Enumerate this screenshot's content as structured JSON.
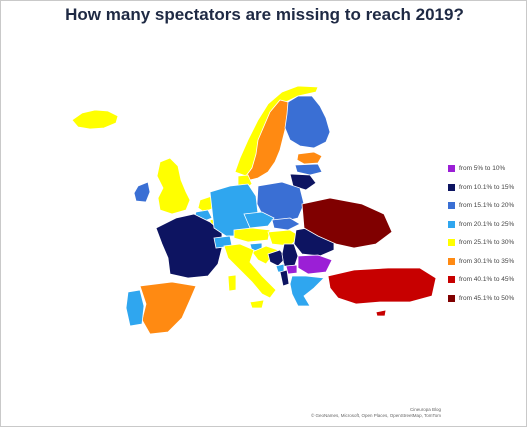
{
  "title": "How many spectators are missing to reach 2019?",
  "legend": [
    {
      "label": "from 5% to 10%",
      "color": "#9b1fd6"
    },
    {
      "label": "from 10.1% to 15%",
      "color": "#0d1461"
    },
    {
      "label": "from 15.1% to 20%",
      "color": "#3a6fd4"
    },
    {
      "label": "from 20.1% to 25%",
      "color": "#2fa6ef"
    },
    {
      "label": "from 25.1% to 30%",
      "color": "#ffff00"
    },
    {
      "label": "from 30.1% to 35%",
      "color": "#ff8a12"
    },
    {
      "label": "from 40.1% to 45%",
      "color": "#c70000"
    },
    {
      "label": "from 45.1% to 50%",
      "color": "#800000"
    }
  ],
  "credits": {
    "line1": "Cineuropa Blog",
    "line2": "© GeoNames, Microsoft, Open Places, OpenStreetMap, TomTom"
  },
  "countries": [
    {
      "name": "Iceland",
      "color": "#ffff00"
    },
    {
      "name": "Norway",
      "color": "#ffff00"
    },
    {
      "name": "Sweden",
      "color": "#ff8a12"
    },
    {
      "name": "Finland",
      "color": "#3a6fd4"
    },
    {
      "name": "Estonia",
      "color": "#ff8a12"
    },
    {
      "name": "Latvia",
      "color": "#3a6fd4"
    },
    {
      "name": "Lithuania",
      "color": "#0d1461"
    },
    {
      "name": "Ireland",
      "color": "#3a6fd4"
    },
    {
      "name": "United Kingdom",
      "color": "#ffff00"
    },
    {
      "name": "Denmark",
      "color": "#ffff00"
    },
    {
      "name": "Netherlands",
      "color": "#ffff00"
    },
    {
      "name": "Belgium",
      "color": "#2fa6ef"
    },
    {
      "name": "Luxembourg",
      "color": "#ffff00"
    },
    {
      "name": "France",
      "color": "#0d1461"
    },
    {
      "name": "Germany",
      "color": "#2fa6ef"
    },
    {
      "name": "Poland",
      "color": "#3a6fd4"
    },
    {
      "name": "Czechia",
      "color": "#2fa6ef"
    },
    {
      "name": "Slovakia",
      "color": "#3a6fd4"
    },
    {
      "name": "Austria",
      "color": "#ffff00"
    },
    {
      "name": "Switzerland",
      "color": "#2fa6ef"
    },
    {
      "name": "Hungary",
      "color": "#ffff00"
    },
    {
      "name": "Slovenia",
      "color": "#2fa6ef"
    },
    {
      "name": "Croatia",
      "color": "#ffff00"
    },
    {
      "name": "Bosnia and Herzegovina",
      "color": "#0d1461"
    },
    {
      "name": "Serbia",
      "color": "#0d1461"
    },
    {
      "name": "Montenegro",
      "color": "#2fa6ef"
    },
    {
      "name": "North Macedonia",
      "color": "#9b1fd6"
    },
    {
      "name": "Albania",
      "color": "#0d1461"
    },
    {
      "name": "Romania",
      "color": "#0d1461"
    },
    {
      "name": "Bulgaria",
      "color": "#9b1fd6"
    },
    {
      "name": "Greece",
      "color": "#2fa6ef"
    },
    {
      "name": "Italy",
      "color": "#ffff00"
    },
    {
      "name": "Spain",
      "color": "#ff8a12"
    },
    {
      "name": "Portugal",
      "color": "#2fa6ef"
    },
    {
      "name": "Ukraine",
      "color": "#800000"
    },
    {
      "name": "Turkey",
      "color": "#c70000"
    },
    {
      "name": "Cyprus",
      "color": "#c70000"
    }
  ]
}
